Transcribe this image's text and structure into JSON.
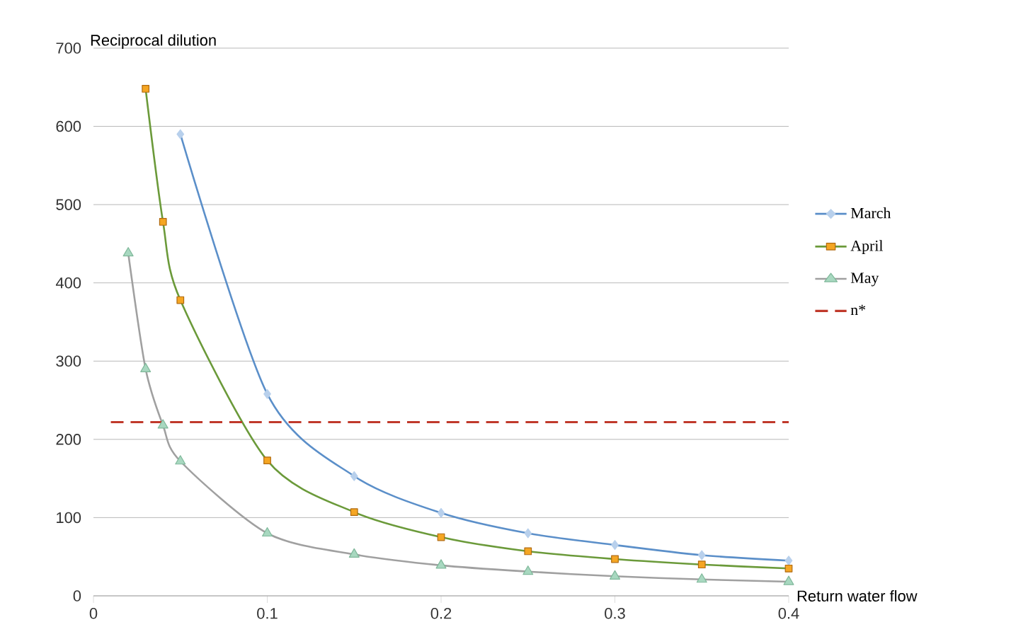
{
  "chart_data": {
    "type": "line",
    "xlabel": "Return water flow",
    "ylabel": "Reciprocal dilution",
    "xlim": [
      0,
      0.4
    ],
    "xticks": [
      0,
      0.1,
      0.2,
      0.3,
      0.4
    ],
    "ylim": [
      0,
      700
    ],
    "yticks": [
      0,
      100,
      200,
      300,
      400,
      500,
      600,
      700
    ],
    "grid": "y",
    "legend": "right",
    "series": [
      {
        "name": "March",
        "color": "#5b8fc9",
        "marker": "diamond",
        "x": [
          0.05,
          0.1,
          0.15,
          0.2,
          0.25,
          0.3,
          0.35,
          0.4
        ],
        "values": [
          590,
          258,
          153,
          106,
          80,
          65,
          52,
          45
        ]
      },
      {
        "name": "April",
        "color": "#6b9a3a",
        "marker": "square",
        "x": [
          0.03,
          0.04,
          0.05,
          0.1,
          0.15,
          0.2,
          0.25,
          0.3,
          0.35,
          0.4
        ],
        "values": [
          648,
          478,
          378,
          173,
          107,
          75,
          57,
          47,
          40,
          35
        ]
      },
      {
        "name": "May",
        "color": "#a0a0a0",
        "marker": "triangle",
        "x": [
          0.02,
          0.03,
          0.04,
          0.05,
          0.1,
          0.15,
          0.2,
          0.25,
          0.3,
          0.35,
          0.4
        ],
        "values": [
          438,
          290,
          218,
          172,
          80,
          53,
          39,
          31,
          25,
          21,
          18
        ]
      }
    ],
    "ref_lines": [
      {
        "axis": "y",
        "value": 222,
        "label": "n*",
        "color": "#c0392b",
        "line_style": "dashed"
      }
    ]
  }
}
